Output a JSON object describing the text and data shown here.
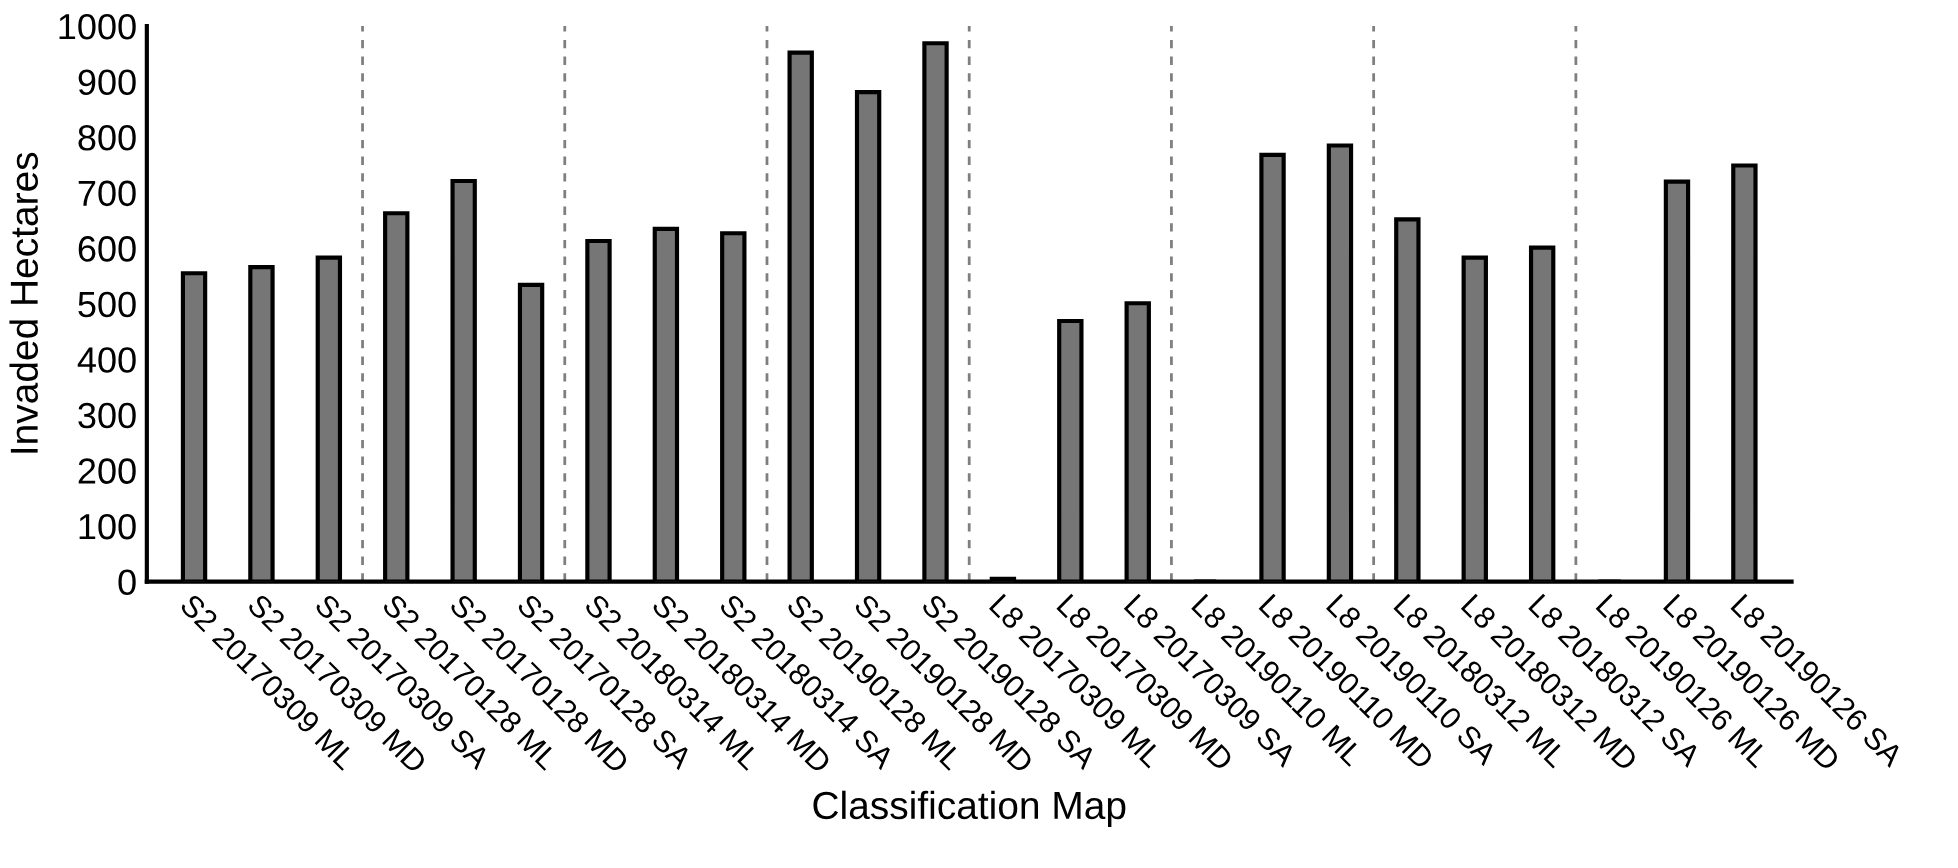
{
  "chart_data": {
    "type": "bar",
    "xlabel": "Classification Map",
    "ylabel": "Invaded Hectares",
    "categories": [
      "S2 20170309 ML",
      "S2 20170309 MD",
      "S2 20170309 SA",
      "S2 20170128 ML",
      "S2 20170128 MD",
      "S2 20170128 SA",
      "S2 20180314 ML",
      "S2 20180314 MD",
      "S2 20180314 SA",
      "S2 20190128 ML",
      "S2 20190128 MD",
      "S2 20190128 SA",
      "L8 20170309 ML",
      "L8 20170309 MD",
      "L8 20170309 SA",
      "L8 20190110 ML",
      "L8 20190110 MD",
      "L8 20190110 SA",
      "L8 20180312 ML",
      "L8 20180312 MD",
      "L8 20180312 SA",
      "L8 20190126 ML",
      "L8 20190126 MD",
      "L8 20190126 SA"
    ],
    "values": [
      555,
      566,
      583,
      663,
      721,
      534,
      613,
      635,
      627,
      952,
      881,
      969,
      5,
      469,
      501,
      0,
      768,
      785,
      652,
      583,
      601,
      0,
      720,
      749
    ],
    "color": "#767676",
    "ylim": [
      0,
      1000
    ],
    "yticks": [
      0,
      100,
      200,
      300,
      400,
      500,
      600,
      700,
      800,
      900,
      1000
    ],
    "grid": false,
    "legend": false
  }
}
